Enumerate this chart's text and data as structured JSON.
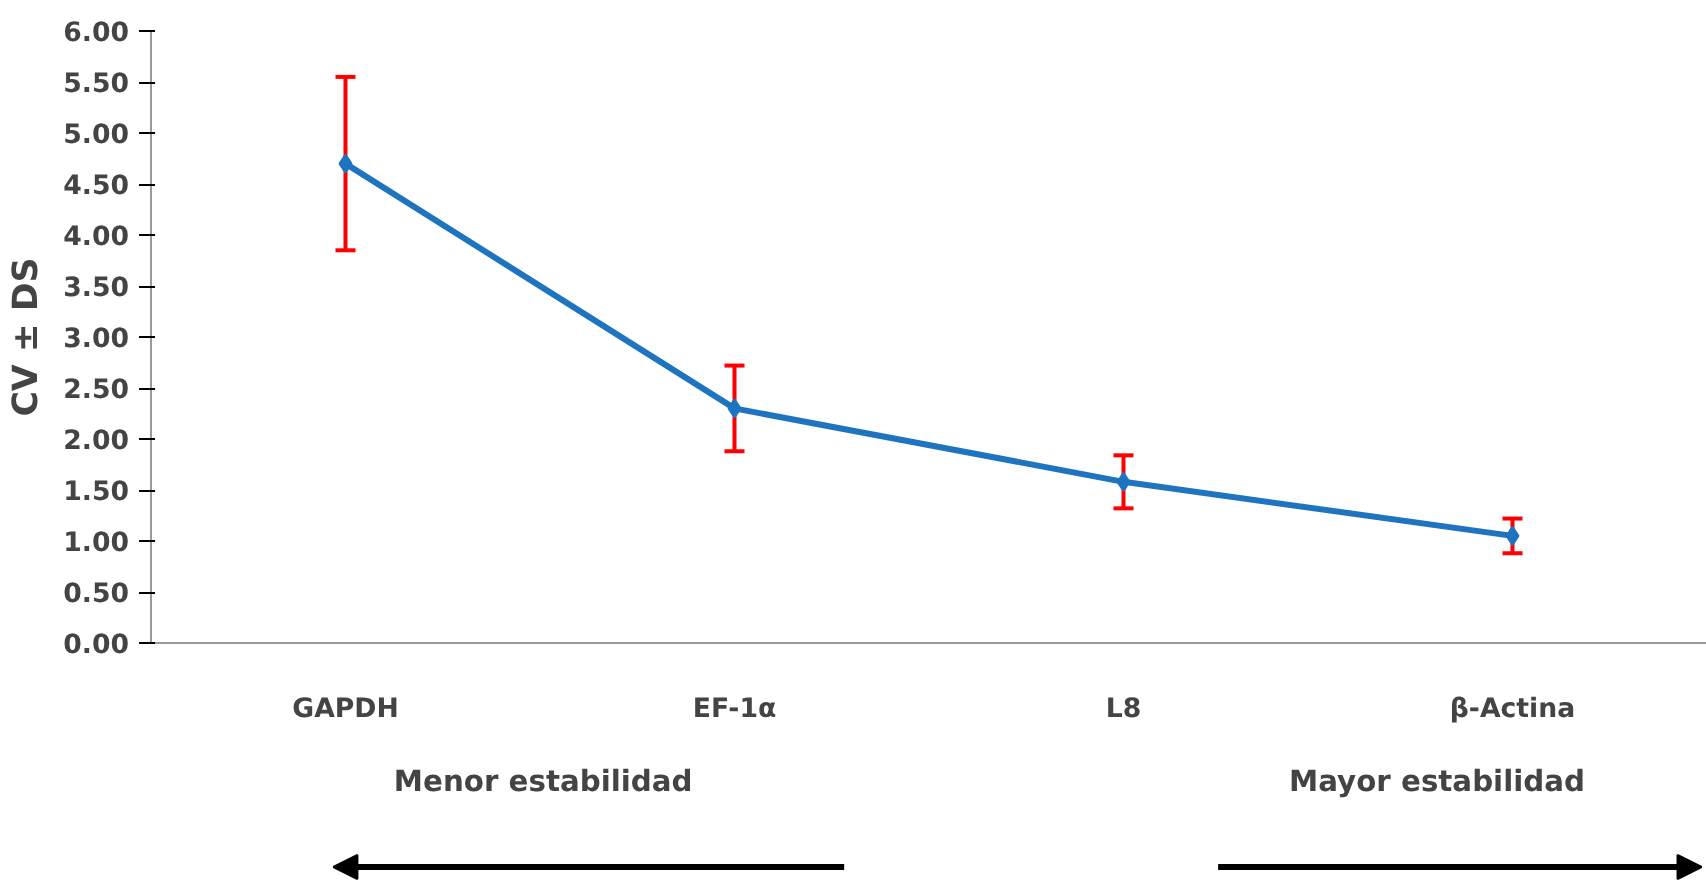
{
  "chart_data": {
    "type": "line",
    "ylabel": "CV ± DS",
    "categories": [
      "GAPDH",
      "EF-1α",
      "L8",
      "β-Actina"
    ],
    "series": [
      {
        "color": "#1f74c0",
        "values": [
          4.7,
          2.3,
          1.58,
          1.05
        ],
        "errors": [
          0.85,
          0.42,
          0.26,
          0.17
        ]
      }
    ],
    "ylim": [
      0,
      6
    ],
    "yticks": [
      {
        "value": 0,
        "label": "0.00"
      },
      {
        "value": 0.5,
        "label": "0.50"
      },
      {
        "value": 1,
        "label": "1.00"
      },
      {
        "value": 1.5,
        "label": "1.50"
      },
      {
        "value": 2,
        "label": "2.00"
      },
      {
        "value": 2.5,
        "label": "2.50"
      },
      {
        "value": 3,
        "label": "3.00"
      },
      {
        "value": 3.5,
        "label": "3.50"
      },
      {
        "value": 4,
        "label": "4.00"
      },
      {
        "value": 4.5,
        "label": "4.50"
      },
      {
        "value": 5,
        "label": "5.00"
      },
      {
        "value": 5.5,
        "label": "5.50"
      },
      {
        "value": 6,
        "label": "6.00"
      }
    ],
    "marker": "diamond",
    "line_style": "solid",
    "grid": false,
    "annotations": [
      "Menor estabilidad",
      "Mayor estabilidad"
    ]
  }
}
